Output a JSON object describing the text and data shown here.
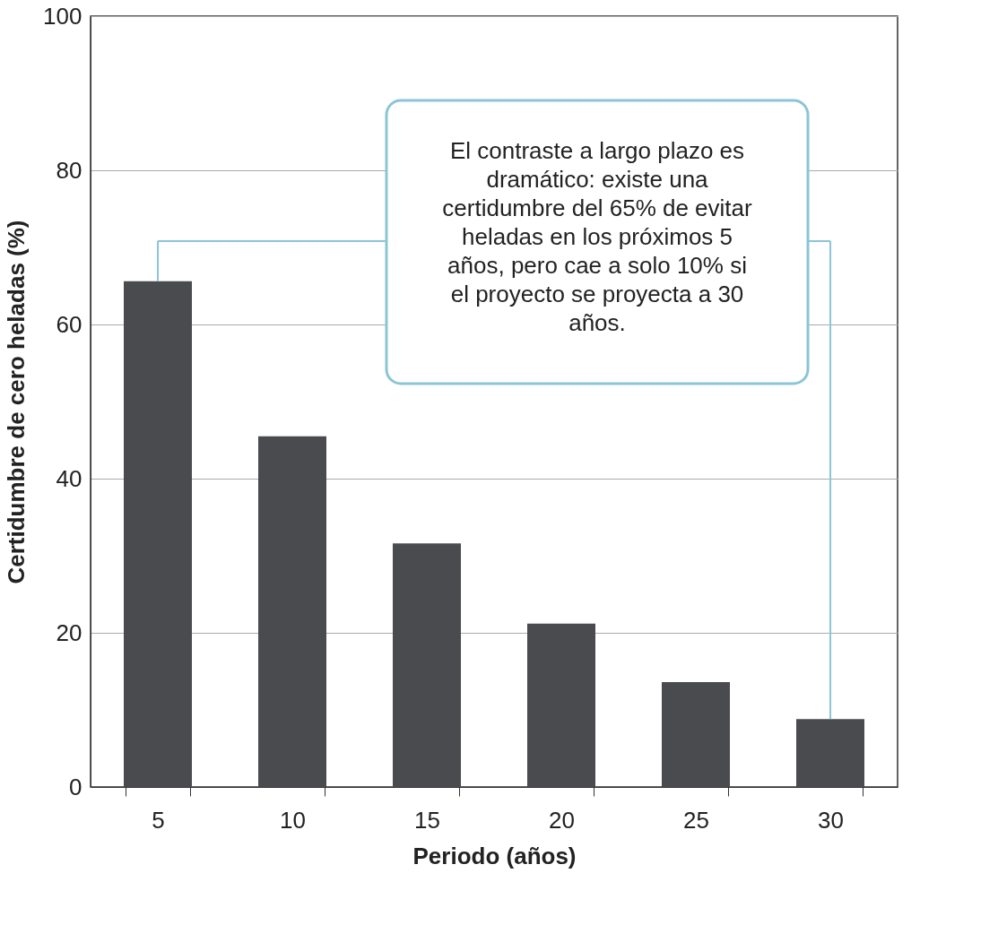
{
  "chart_data": {
    "type": "bar",
    "xlabel": "Periodo (años)",
    "ylabel": "Certidumbre de cero heladas (%)",
    "categories": [
      "5",
      "10",
      "15",
      "20",
      "25",
      "30"
    ],
    "values": [
      65.6,
      45.5,
      31.6,
      21.2,
      13.6,
      8.8
    ],
    "color": "#4a4b4e",
    "ylim": [
      0,
      100
    ],
    "yticks": [
      0,
      20,
      40,
      60,
      80,
      100
    ],
    "grid": "y",
    "annotations": [
      "El contraste a largo plazo es dramático: existe una certidumbre del 65% de evitar heladas en los próximos 5 años, pero cae a solo 10% si el proyecto se proyecta a 30 años."
    ]
  }
}
